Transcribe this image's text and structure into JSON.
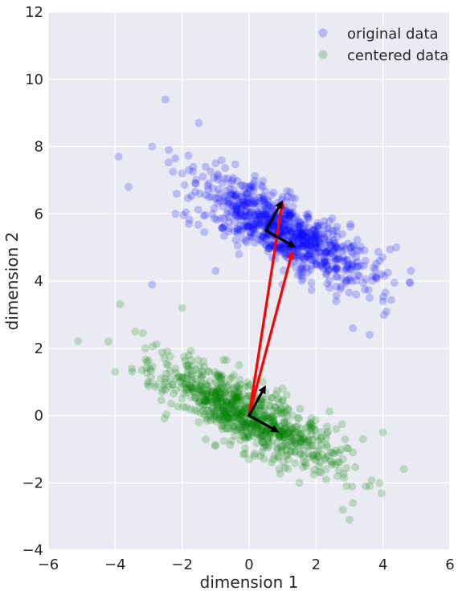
{
  "chart_data": {
    "type": "scatter",
    "xlabel": "dimension 1",
    "ylabel": "dimension 2",
    "xlim": [
      -6,
      6
    ],
    "ylim": [
      -4,
      12
    ],
    "x_ticks": [
      -6,
      -4,
      -2,
      0,
      2,
      4,
      6
    ],
    "y_ticks": [
      -4,
      -2,
      0,
      2,
      4,
      6,
      8,
      10,
      12
    ],
    "x_tick_labels": [
      "−6",
      "−4",
      "−2",
      "0",
      "2",
      "4",
      "6"
    ],
    "y_tick_labels": [
      "−4",
      "−2",
      "0",
      "2",
      "4",
      "6",
      "8",
      "10",
      "12"
    ],
    "grid": true,
    "legend_position": "top-right",
    "colors": {
      "background": "#eaeaf2",
      "grid": "#ffffff",
      "original": "#0000ff",
      "centered": "#008000",
      "mean_arrow": "#ff0000",
      "component_arrow": "#000000"
    },
    "series": [
      {
        "name": "original data",
        "center": [
          1.0,
          5.5
        ],
        "covariance": [
          [
            1.7,
            -0.8
          ],
          [
            -0.8,
            0.6
          ]
        ],
        "count": 800,
        "points": [
          [
            -2.5,
            9.4
          ],
          [
            -1.5,
            8.7
          ],
          [
            -2.9,
            8.0
          ],
          [
            -3.9,
            7.7
          ],
          [
            -3.6,
            6.8
          ],
          [
            -2.9,
            3.9
          ],
          [
            4.4,
            5.0
          ],
          [
            4.0,
            3.4
          ],
          [
            3.6,
            2.4
          ],
          [
            3.1,
            2.6
          ],
          [
            2.6,
            3.4
          ],
          [
            3.8,
            4.1
          ],
          [
            -2.0,
            7.2
          ],
          [
            -1.0,
            7.5
          ],
          [
            -0.5,
            7.0
          ],
          [
            -2.2,
            6.0
          ],
          [
            -1.2,
            6.5
          ],
          [
            -0.4,
            6.2
          ],
          [
            0.4,
            6.8
          ],
          [
            1.0,
            6.5
          ],
          [
            -0.8,
            5.6
          ],
          [
            0.2,
            5.8
          ],
          [
            0.9,
            5.3
          ],
          [
            1.6,
            5.4
          ],
          [
            2.2,
            5.0
          ],
          [
            2.8,
            4.6
          ],
          [
            1.4,
            4.4
          ],
          [
            2.3,
            4.2
          ],
          [
            -0.3,
            4.8
          ],
          [
            0.7,
            4.7
          ],
          [
            -1.0,
            4.3
          ],
          [
            3.3,
            4.9
          ],
          [
            3.6,
            3.5
          ],
          [
            -0.9,
            6.6
          ],
          [
            0.1,
            6.4
          ],
          [
            1.2,
            6.0
          ],
          [
            1.9,
            4.8
          ],
          [
            2.6,
            5.5
          ],
          [
            -1.6,
            6.9
          ],
          [
            -0.1,
            5.2
          ],
          [
            0.5,
            5.6
          ],
          [
            1.3,
            5.2
          ],
          [
            2.0,
            4.5
          ],
          [
            2.9,
            4.0
          ],
          [
            -0.6,
            5.9
          ],
          [
            3.2,
            3.6
          ],
          [
            3.9,
            4.6
          ],
          [
            2.4,
            3.8
          ],
          [
            1.0,
            3.9
          ],
          [
            -1.8,
            7.3
          ]
        ]
      },
      {
        "name": "centered data",
        "center": [
          0.0,
          0.0
        ],
        "covariance": [
          [
            1.7,
            -0.8
          ],
          [
            -0.8,
            0.6
          ]
        ],
        "count": 800,
        "points": [
          [
            -4.2,
            2.2
          ],
          [
            -3.4,
            2.5
          ],
          [
            -4.0,
            1.3
          ],
          [
            -3.1,
            2.0
          ],
          [
            -2.0,
            3.2
          ],
          [
            -3.5,
            1.4
          ],
          [
            -3.0,
            1.0
          ],
          [
            -2.5,
            1.1
          ],
          [
            3.6,
            -2.1
          ],
          [
            3.0,
            -3.1
          ],
          [
            3.1,
            -2.6
          ],
          [
            2.8,
            -2.8
          ],
          [
            4.0,
            -0.5
          ],
          [
            3.4,
            -0.7
          ],
          [
            2.3,
            -1.6
          ],
          [
            2.7,
            -1.4
          ],
          [
            -2.6,
            0.7
          ],
          [
            -2.0,
            0.5
          ],
          [
            -1.5,
            0.9
          ],
          [
            -1.0,
            0.4
          ],
          [
            -0.5,
            0.2
          ],
          [
            0.1,
            0.1
          ],
          [
            0.6,
            -0.1
          ],
          [
            1.1,
            -0.4
          ],
          [
            1.6,
            -0.7
          ],
          [
            2.1,
            -1.0
          ],
          [
            -1.8,
            1.8
          ],
          [
            -1.2,
            1.3
          ],
          [
            -0.6,
            0.9
          ],
          [
            0.0,
            0.6
          ],
          [
            0.6,
            0.3
          ],
          [
            1.3,
            0.0
          ],
          [
            1.9,
            -0.3
          ],
          [
            -1.5,
            -0.2
          ],
          [
            -0.8,
            -0.4
          ],
          [
            -0.2,
            -0.6
          ],
          [
            0.5,
            -0.9
          ],
          [
            1.1,
            -1.2
          ],
          [
            1.7,
            -1.5
          ],
          [
            2.3,
            -1.9
          ],
          [
            -2.2,
            1.4
          ],
          [
            -0.3,
            1.5
          ],
          [
            0.4,
            1.0
          ],
          [
            1.0,
            0.8
          ],
          [
            -1.0,
            -0.9
          ],
          [
            0.0,
            -1.3
          ],
          [
            0.9,
            -1.6
          ],
          [
            1.5,
            -2.0
          ],
          [
            2.6,
            -0.4
          ],
          [
            3.1,
            -1.1
          ]
        ]
      }
    ],
    "arrows": [
      {
        "from": [
          0.0,
          0.0
        ],
        "to": [
          1.0,
          6.4
        ],
        "color": "red"
      },
      {
        "from": [
          0.0,
          0.0
        ],
        "to": [
          1.3,
          4.9
        ],
        "color": "red"
      },
      {
        "from": [
          0.0,
          0.0
        ],
        "to": [
          0.5,
          0.9
        ],
        "color": "black"
      },
      {
        "from": [
          0.0,
          0.0
        ],
        "to": [
          0.9,
          -0.5
        ],
        "color": "black"
      },
      {
        "from": [
          0.5,
          5.5
        ],
        "to": [
          1.0,
          6.4
        ],
        "color": "black"
      },
      {
        "from": [
          0.5,
          5.5
        ],
        "to": [
          1.4,
          5.0
        ],
        "color": "black"
      }
    ]
  }
}
